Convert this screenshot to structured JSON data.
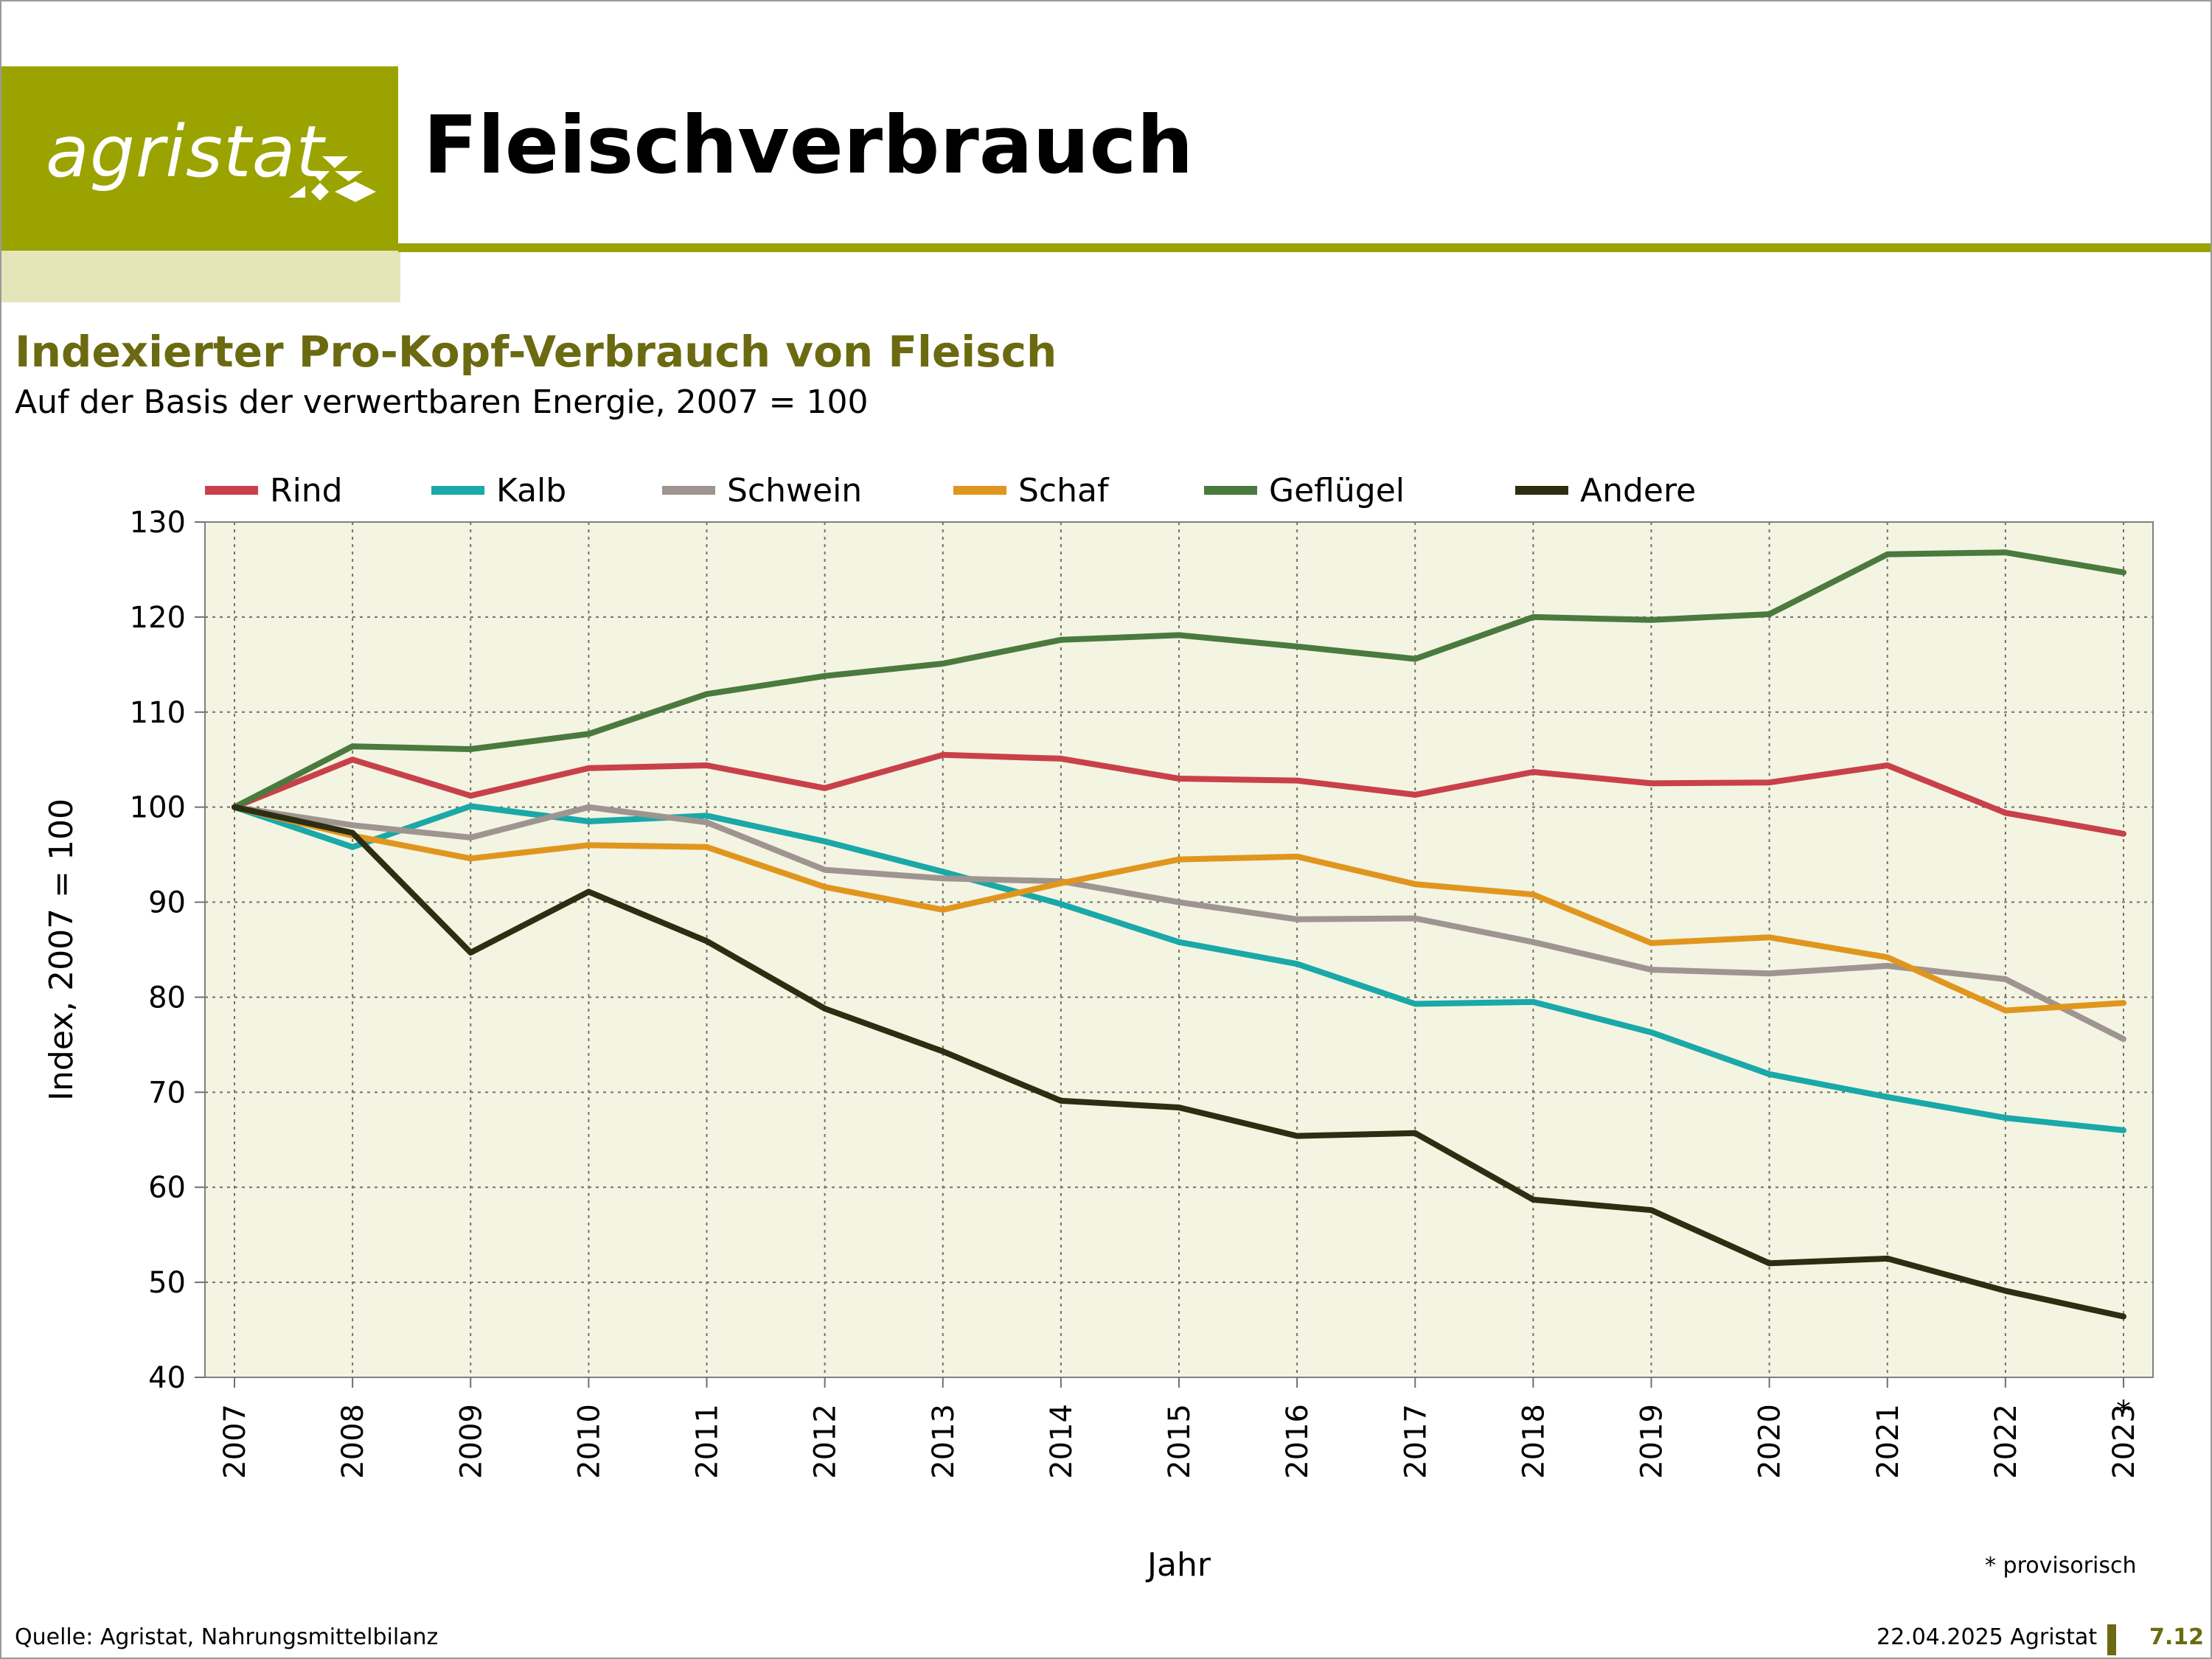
{
  "header": {
    "logo_text": "agristat",
    "page_title": "Fleischverbrauch",
    "brand_color": "#9aa300"
  },
  "footer": {
    "source": "Quelle: Agristat, Nahrungsmittelbilanz",
    "date": "22.04.2025 Agristat",
    "page_number": "7.12",
    "footnote": "* provisorisch"
  },
  "chart_data": {
    "type": "line",
    "title": "Indexierter Pro-Kopf-Verbrauch von Fleisch",
    "subtitle": "Auf der Basis der verwertbaren Energie, 2007 = 100",
    "xlabel": "Jahr",
    "ylabel": "Index, 2007 = 100",
    "ylim": [
      40,
      130
    ],
    "yticks": [
      40,
      50,
      60,
      70,
      80,
      90,
      100,
      110,
      120,
      130
    ],
    "grid": true,
    "legend": "top",
    "plot_background": "#f4f4e2",
    "categories": [
      "2007",
      "2008",
      "2009",
      "2010",
      "2011",
      "2012",
      "2013",
      "2014",
      "2015",
      "2016",
      "2017",
      "2018",
      "2019",
      "2020",
      "2021",
      "2022",
      "2023"
    ],
    "annotations": [
      {
        "category": "2023",
        "text": "*"
      }
    ],
    "series": [
      {
        "name": "Rind",
        "color": "#c8414a",
        "values": [
          100,
          105.0,
          101.2,
          104.1,
          104.4,
          102.0,
          105.5,
          105.1,
          103.0,
          102.8,
          101.3,
          103.7,
          102.5,
          102.6,
          104.4,
          99.4,
          97.2
        ]
      },
      {
        "name": "Kalb",
        "color": "#1aa8a8",
        "values": [
          100,
          95.8,
          100.1,
          98.5,
          99.1,
          96.4,
          93.2,
          89.8,
          85.8,
          83.5,
          79.3,
          79.5,
          76.3,
          71.9,
          69.5,
          67.3,
          66.0
        ]
      },
      {
        "name": "Schwein",
        "color": "#9e9590",
        "values": [
          100,
          98.1,
          96.8,
          100.0,
          98.4,
          93.4,
          92.5,
          92.2,
          90.0,
          88.2,
          88.3,
          85.8,
          82.9,
          82.5,
          83.3,
          81.9,
          75.6
        ]
      },
      {
        "name": "Schaf",
        "color": "#e0961e",
        "values": [
          100,
          97.0,
          94.6,
          96.0,
          95.8,
          91.6,
          89.2,
          92.0,
          94.5,
          94.8,
          91.9,
          90.8,
          85.7,
          86.3,
          84.2,
          78.6,
          79.4
        ]
      },
      {
        "name": "Geflügel",
        "color": "#4a7a3e",
        "values": [
          100,
          106.4,
          106.1,
          107.7,
          111.9,
          113.8,
          115.1,
          117.6,
          118.1,
          116.9,
          115.6,
          120.0,
          119.7,
          120.3,
          126.6,
          126.8,
          124.7
        ]
      },
      {
        "name": "Andere",
        "color": "#2d2d12",
        "values": [
          100,
          97.3,
          84.7,
          91.1,
          85.9,
          78.8,
          74.3,
          69.1,
          68.4,
          65.4,
          65.7,
          58.7,
          57.6,
          52.0,
          52.5,
          49.1,
          46.4
        ]
      }
    ]
  }
}
